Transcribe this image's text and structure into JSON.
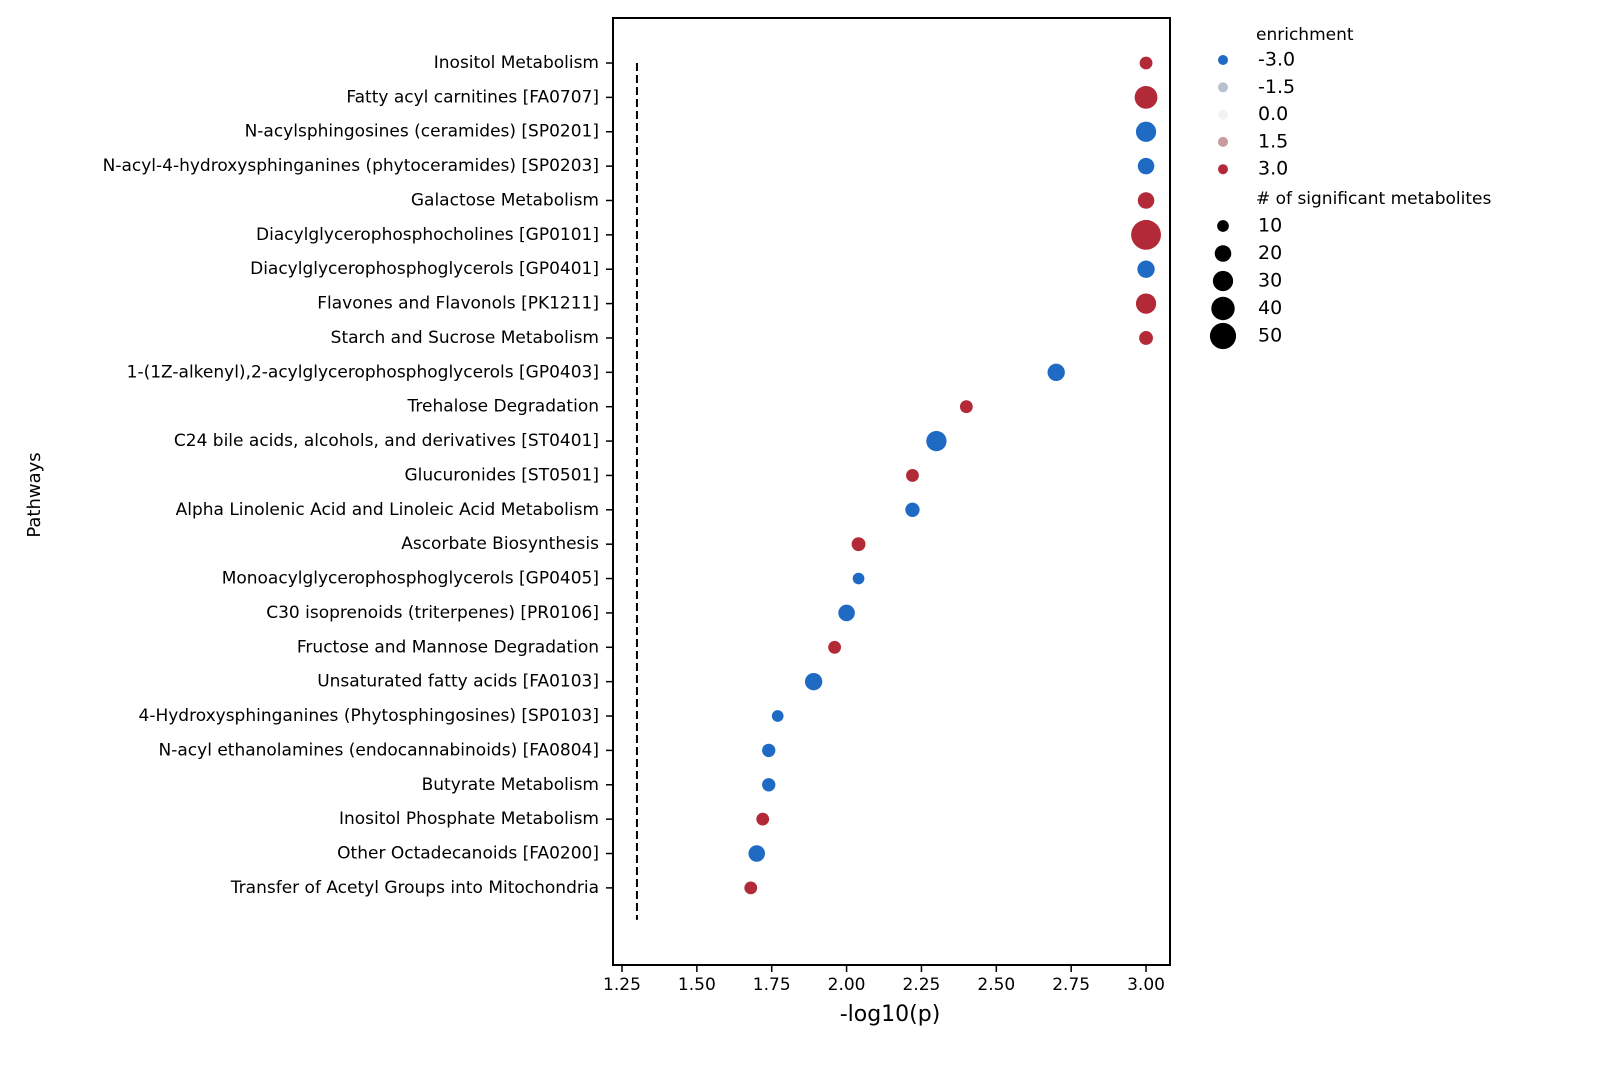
{
  "chart_data": {
    "type": "scatter",
    "xlabel": "-log10(p)",
    "ylabel": "Pathways",
    "categories": [
      "Inositol Metabolism",
      "Fatty acyl carnitines [FA0707]",
      "N-acylsphingosines (ceramides) [SP0201]",
      "N-acyl-4-hydroxysphinganines (phytoceramides) [SP0203]",
      "Galactose Metabolism",
      "Diacylglycerophosphocholines [GP0101]",
      "Diacylglycerophosphoglycerols [GP0401]",
      "Flavones and Flavonols [PK1211]",
      "Starch and Sucrose Metabolism",
      "1-(1Z-alkenyl),2-acylglycerophosphoglycerols [GP0403]",
      "Trehalose Degradation",
      "C24 bile acids, alcohols, and derivatives [ST0401]",
      "Glucuronides [ST0501]",
      "Alpha Linolenic Acid and Linoleic Acid Metabolism",
      "Ascorbate Biosynthesis",
      "Monoacylglycerophosphoglycerols [GP0405]",
      "C30 isoprenoids (triterpenes) [PR0106]",
      "Fructose and Mannose Degradation",
      "Unsaturated fatty acids [FA0103]",
      "4-Hydroxysphinganines (Phytosphingosines) [SP0103]",
      "N-acyl ethanolamines (endocannabinoids) [FA0804]",
      "Butyrate Metabolism",
      "Inositol Phosphate Metabolism",
      "Other Octadecanoids [FA0200]",
      "Transfer of Acetyl Groups into Mitochondria"
    ],
    "values": [
      3.0,
      3.0,
      3.0,
      3.0,
      3.0,
      3.0,
      3.0,
      3.0,
      3.0,
      2.7,
      2.4,
      2.3,
      2.22,
      2.22,
      2.04,
      2.04,
      2.0,
      1.96,
      1.89,
      1.77,
      1.74,
      1.74,
      1.72,
      1.7,
      1.68
    ],
    "sizes": [
      12,
      38,
      30,
      20,
      20,
      65,
      22,
      30,
      14,
      22,
      12,
      30,
      12,
      15,
      14,
      10,
      20,
      12,
      22,
      10,
      13,
      13,
      12,
      20,
      12
    ],
    "enrichment": [
      3,
      3,
      -3,
      -3,
      3,
      3,
      -3,
      3,
      3,
      -3,
      3,
      -3,
      3,
      -3,
      3,
      -3,
      -3,
      3,
      -3,
      -3,
      -3,
      -3,
      3,
      -3,
      3
    ],
    "xlim": [
      1.22,
      3.08
    ],
    "xticks": [
      1.25,
      {
        "value": 1.5,
        "label": "1.50"
      },
      1.75,
      {
        "value": 2.0,
        "label": "2.00"
      },
      2.25,
      {
        "value": 2.5,
        "label": "2.50"
      },
      2.75,
      {
        "value": 3.0,
        "label": "3.00"
      }
    ],
    "threshold": 1.3,
    "color_legend": {
      "title": "enrichment",
      "ticks": [
        {
          "value": -3,
          "label": "-3.0"
        },
        {
          "value": -1.5,
          "label": "-1.5"
        },
        {
          "value": 0,
          "label": "0.0"
        },
        {
          "value": 1.5,
          "label": "1.5"
        },
        {
          "value": 3,
          "label": "3.0"
        }
      ],
      "colors": [
        "#1f6bc4",
        "#b9c0d2",
        "#f2f2f2",
        "#c99a9e",
        "#b22a37"
      ]
    },
    "size_legend": {
      "title": "#  of significant metabolites",
      "ticks": [
        10,
        20,
        30,
        40,
        50
      ]
    }
  }
}
